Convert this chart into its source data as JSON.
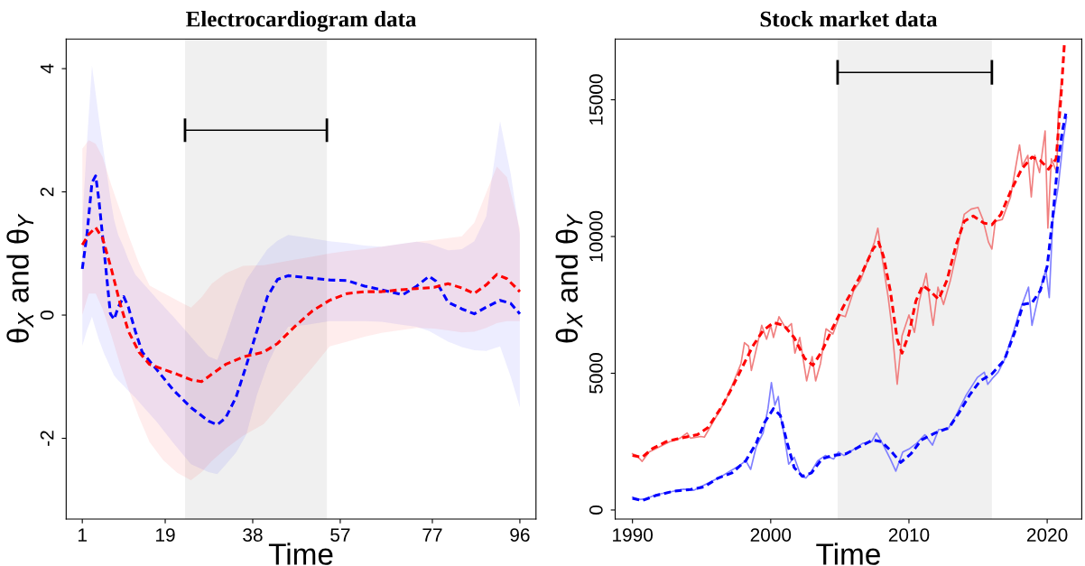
{
  "chart_data": [
    {
      "type": "line",
      "title": "Electrocardiogram data",
      "xlabel": "Time",
      "ylabel": "θ$_{X}$ and θ$_{Y}$",
      "xlim": [
        -2.5,
        99.5
      ],
      "ylim": [
        -3.31,
        4.48
      ],
      "xticks": [
        1,
        19,
        38,
        57,
        77,
        96
      ],
      "yticks": [
        -2,
        0,
        2,
        4
      ],
      "grid": false,
      "bands": [
        {
          "axis": "x",
          "from": 23.3,
          "to": 54.1,
          "color": "#f0f0f0"
        }
      ],
      "series": [
        {
          "type": "line",
          "color": "#0000ff",
          "line_style": "dashed",
          "x": [
            1,
            2,
            3.1,
            3.9,
            4.6,
            5.75,
            7.1,
            7.9,
            8.8,
            10,
            11,
            12.5,
            14,
            17.1,
            20.8,
            24.6,
            28.4,
            30.3,
            32.1,
            34.4,
            36.6,
            38.9,
            41.2,
            43.4,
            45.7,
            49.5,
            54.7,
            58.5,
            62.3,
            66,
            70.6,
            73.6,
            76.3,
            77.8,
            80.4,
            83.4,
            86.1,
            88.7,
            91.7,
            94,
            96
          ],
          "values": [
            0.75,
            1.3,
            2.15,
            2.26,
            1.87,
            1.03,
            0.02,
            -0.07,
            0.13,
            0.3,
            0.13,
            -0.26,
            -0.6,
            -0.88,
            -1.22,
            -1.5,
            -1.72,
            -1.78,
            -1.67,
            -1.33,
            -0.82,
            -0.26,
            0.3,
            0.58,
            0.64,
            0.61,
            0.57,
            0.56,
            0.47,
            0.41,
            0.33,
            0.47,
            0.63,
            0.55,
            0.21,
            0.1,
            0.02,
            0.13,
            0.24,
            0.19,
            0.02
          ],
          "lower": [
            -0.5,
            -0.25,
            -0.03,
            -0.23,
            -0.4,
            -0.63,
            -0.85,
            -0.98,
            -1.06,
            -1.15,
            -1.23,
            -1.34,
            -1.47,
            -1.73,
            -2.08,
            -2.42,
            -2.55,
            -2.58,
            -2.43,
            -2.23,
            -1.94,
            -1.3,
            -0.81,
            -0.46,
            -0.19,
            -0.16,
            -0.1,
            -0.1,
            -0.1,
            -0.11,
            -0.16,
            -0.19,
            -0.26,
            -0.32,
            -0.43,
            -0.52,
            -0.57,
            -0.58,
            -0.51,
            -1.0,
            -1.5
          ],
          "upper": [
            1.5,
            2.8,
            4.05,
            3.6,
            3.2,
            2.6,
            1.9,
            1.55,
            1.3,
            1.1,
            0.9,
            0.66,
            0.53,
            0.27,
            -0.03,
            -0.35,
            -0.67,
            -0.73,
            -0.37,
            0.15,
            0.57,
            0.82,
            1.07,
            1.21,
            1.3,
            1.26,
            1.2,
            1.17,
            1.13,
            1.11,
            1.16,
            1.19,
            1.16,
            1.12,
            1.05,
            1.07,
            1.2,
            1.6,
            3.15,
            2.3,
            1.3
          ]
        },
        {
          "type": "line",
          "color": "#ff0000",
          "line_style": "dashed",
          "x": [
            1,
            2.4,
            3.9,
            5.4,
            7.3,
            9.2,
            11,
            13.3,
            15.6,
            18.6,
            21.6,
            24.6,
            26.9,
            29.1,
            32.1,
            35.9,
            40.4,
            43.4,
            47.2,
            51,
            54.7,
            58.5,
            62.3,
            66,
            69.8,
            73.6,
            77.4,
            80.4,
            83.4,
            86.1,
            88.7,
            91,
            93.2,
            96
          ],
          "values": [
            1.14,
            1.31,
            1.42,
            1.25,
            0.75,
            0.19,
            -0.26,
            -0.6,
            -0.8,
            -0.88,
            -0.96,
            -1.05,
            -1.08,
            -0.96,
            -0.8,
            -0.68,
            -0.6,
            -0.46,
            -0.18,
            0.07,
            0.24,
            0.35,
            0.38,
            0.38,
            0.41,
            0.43,
            0.45,
            0.51,
            0.44,
            0.35,
            0.49,
            0.66,
            0.59,
            0.38
          ],
          "lower": [
            0,
            0.35,
            0.35,
            0.1,
            -0.33,
            -0.8,
            -1.2,
            -1.66,
            -2.06,
            -2.36,
            -2.56,
            -2.68,
            -2.55,
            -2.37,
            -2.17,
            -1.96,
            -1.77,
            -1.51,
            -1.18,
            -0.85,
            -0.51,
            -0.43,
            -0.35,
            -0.29,
            -0.25,
            -0.21,
            -0.22,
            -0.25,
            -0.28,
            -0.27,
            -0.21,
            -0.13,
            -0.1,
            -0.1
          ],
          "upper": [
            2.7,
            2.84,
            2.78,
            2.57,
            2.11,
            1.7,
            1.3,
            0.84,
            0.48,
            0.36,
            0.24,
            0.12,
            0.29,
            0.51,
            0.68,
            0.8,
            0.81,
            0.85,
            0.9,
            0.95,
            1.0,
            1.04,
            1.07,
            1.11,
            1.15,
            1.19,
            1.22,
            1.25,
            1.28,
            1.5,
            1.99,
            2.41,
            2.24,
            1.4
          ]
        },
        {
          "type": "line",
          "color": "#000000",
          "line_style": "solid",
          "x": [
            23.3,
            54.1
          ],
          "values": [
            3,
            3
          ],
          "errors": [
            0.19,
            0.19
          ]
        }
      ]
    },
    {
      "type": "line",
      "title": "Stock market data",
      "xlabel": "Time",
      "ylabel": "θ$_{X}$ and θ$_{Y}$",
      "xlim": [
        1988.75,
        2022.5
      ],
      "ylim": [
        -330,
        17220
      ],
      "xticks": [
        1990,
        2000,
        2010,
        2020
      ],
      "yticks": [
        0,
        5000,
        10000,
        15000
      ],
      "grid": false,
      "bands": [
        {
          "axis": "x",
          "from": 2004.84,
          "to": 2016.0,
          "color": "#f0f0f0"
        }
      ],
      "series": [
        {
          "type": "line",
          "color": "#f08080",
          "line_style": "solid",
          "x": [
            1990,
            1990.3,
            1990.7,
            1991.2,
            1991.95,
            1992.7,
            1993.45,
            1993.95,
            1994.2,
            1994.95,
            1995.2,
            1995.95,
            1996.7,
            1997.35,
            1997.85,
            1998.1,
            1998.4,
            1998.6,
            1998.95,
            1999.35,
            1999.7,
            2000,
            2000.2,
            2000.6,
            2001.1,
            2001.5,
            2001.75,
            2002.1,
            2002.6,
            2003,
            2003.25,
            2003.6,
            2004,
            2004.5,
            2005,
            2005.4,
            2006,
            2006.5,
            2007.15,
            2007.5,
            2007.75,
            2008,
            2008.5,
            2008.75,
            2009.15,
            2009.5,
            2010,
            2010.4,
            2010.75,
            2011.25,
            2011.6,
            2011.75,
            2012.1,
            2012.5,
            2013,
            2013.5,
            2014,
            2014.5,
            2015,
            2015.35,
            2015.75,
            2016,
            2016.25,
            2016.75,
            2017.35,
            2018,
            2018.2,
            2018.6,
            2018.85,
            2019.1,
            2019.45,
            2019.85,
            2020.05,
            2020.3,
            2020.7,
            2020.8,
            2021
          ],
          "values": [
            2056,
            1992,
            1777,
            2119,
            2310,
            2500,
            2627,
            2817,
            2627,
            2690,
            2665,
            3325,
            3959,
            4721,
            5355,
            6117,
            5990,
            5102,
            5863,
            6751,
            6244,
            6751,
            6307,
            7069,
            6624,
            6815,
            5736,
            6307,
            4721,
            5609,
            4721,
            5355,
            6624,
            6434,
            7132,
            7069,
            8020,
            8401,
            9289,
            9797,
            10305,
            9416,
            7766,
            6751,
            4594,
            6371,
            7132,
            6497,
            7640,
            8655,
            7259,
            6751,
            8147,
            7513,
            8401,
            9543,
            10812,
            11003,
            11066,
            10622,
            9797,
            9543,
            10558,
            10622,
            11447,
            13350,
            12589,
            12970,
            11447,
            12970,
            12335,
            13858,
            10305,
            12843,
            12335,
            14492,
            15508
          ]
        },
        {
          "type": "line",
          "color": "#8080ff",
          "line_style": "solid",
          "x": [
            1990,
            1990.45,
            1990.95,
            1991.7,
            1992.7,
            1993.7,
            1994.45,
            1995.2,
            1995.95,
            1996.45,
            1997.05,
            1997.7,
            1998.2,
            1998.55,
            1998.95,
            1999.45,
            1999.8,
            2000.05,
            2000.3,
            2000.55,
            2000.7,
            2000.95,
            2001.3,
            2001.7,
            2002.2,
            2002.55,
            2002.95,
            2003.4,
            2003.95,
            2004.55,
            2004.9,
            2005.3,
            2005.9,
            2006.65,
            2007.3,
            2007.65,
            2008.15,
            2008.65,
            2009.05,
            2009.55,
            2010.05,
            2010.55,
            2011.15,
            2011.7,
            2012.15,
            2012.8,
            2013.4,
            2014.15,
            2014.95,
            2015.45,
            2015.7,
            2016.1,
            2016.45,
            2016.9,
            2017.55,
            2018,
            2018.65,
            2018.9,
            2019.4,
            2019.9,
            2020.15,
            2020.4,
            2020.8,
            2021.15,
            2021.4
          ],
          "values": [
            470,
            381,
            406,
            558,
            660,
            761,
            723,
            914,
            1104,
            1231,
            1421,
            1612,
            1802,
            1485,
            2310,
            2817,
            3706,
            4657,
            3832,
            4150,
            3452,
            2817,
            1675,
            1929,
            1231,
            1168,
            1421,
            1802,
            1992,
            1865,
            2119,
            1992,
            2183,
            2437,
            2500,
            2817,
            2373,
            1865,
            1421,
            2119,
            2246,
            2437,
            2754,
            2373,
            2944,
            2944,
            3452,
            4213,
            4848,
            5038,
            4594,
            4848,
            5038,
            5482,
            6497,
            7259,
            8147,
            6751,
            7893,
            8782,
            7766,
            10558,
            11828,
            13477,
            14365
          ]
        },
        {
          "type": "line",
          "color": "#ff0000",
          "line_style": "dashed",
          "x": [
            1990,
            1990.7,
            1991.45,
            1992.45,
            1993.45,
            1994.7,
            1995.45,
            1996.45,
            1997.2,
            1997.95,
            1998.7,
            1999.45,
            2000.2,
            2000.95,
            2001.7,
            2002.45,
            2003.05,
            2003.7,
            2004.45,
            2005.2,
            2005.9,
            2006.65,
            2007.4,
            2007.8,
            2008.15,
            2008.65,
            2009.15,
            2009.5,
            2010,
            2010.5,
            2011,
            2011.5,
            2012.15,
            2012.75,
            2013.4,
            2014,
            2014.65,
            2015.4,
            2016,
            2016.65,
            2017.4,
            2018.15,
            2018.9,
            2019.5,
            2020.1,
            2020.65,
            2021,
            2021.25
          ],
          "values": [
            1992,
            1929,
            2246,
            2500,
            2627,
            2754,
            3008,
            3769,
            4467,
            5228,
            5990,
            6561,
            6853,
            6751,
            6307,
            5546,
            5292,
            5800,
            6624,
            7386,
            8020,
            8718,
            9543,
            9797,
            9289,
            8020,
            6244,
            5736,
            6434,
            7640,
            8211,
            8020,
            7703,
            8401,
            9670,
            10558,
            10749,
            10495,
            10431,
            10812,
            11701,
            12462,
            12906,
            12779,
            12462,
            12843,
            15127,
            17094
          ]
        },
        {
          "type": "line",
          "color": "#0000ff",
          "line_style": "dashed",
          "x": [
            1990,
            1990.7,
            1991.7,
            1992.95,
            1994.2,
            1995.2,
            1996.2,
            1997.2,
            1998.2,
            1998.95,
            1999.55,
            2000.2,
            2000.7,
            2001.2,
            2001.7,
            2002.3,
            2002.95,
            2003.7,
            2004.45,
            2005.45,
            2006.4,
            2007.4,
            2008,
            2008.65,
            2009.4,
            2010.15,
            2010.9,
            2011.9,
            2012.9,
            2013.65,
            2014.4,
            2015.15,
            2016,
            2016.9,
            2017.65,
            2018.25,
            2018.9,
            2019.5,
            2020,
            2020.4,
            2020.75,
            2021.1,
            2021.35
          ],
          "values": [
            431,
            343,
            533,
            685,
            749,
            850,
            1168,
            1358,
            1802,
            2437,
            3198,
            3706,
            3452,
            2437,
            1548,
            1231,
            1358,
            1865,
            1992,
            2056,
            2310,
            2563,
            2500,
            2183,
            1739,
            2056,
            2563,
            2817,
            3008,
            3579,
            4213,
            4721,
            4975,
            5482,
            6497,
            7513,
            7576,
            8020,
            8909,
            10685,
            12589,
            13858,
            14492
          ]
        },
        {
          "type": "line",
          "color": "#000000",
          "line_style": "solid",
          "x": [
            2004.84,
            2016.0
          ],
          "values": [
            16000,
            16000
          ],
          "errors": [
            450,
            450
          ]
        }
      ]
    }
  ]
}
